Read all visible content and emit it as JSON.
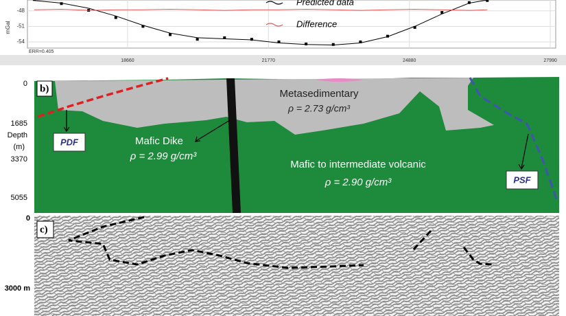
{
  "chart_data": {
    "type": "line",
    "ylabel": "mGal",
    "annotation": "ERR=0.405",
    "grid": true,
    "xlim": [
      16450,
      28110
    ],
    "xticks": [
      18660,
      21770,
      24880,
      27990
    ],
    "ylim": [
      -55.2,
      -45.9
    ],
    "yticks": [
      -48,
      -51,
      -54
    ],
    "x": [
      16600,
      17200,
      17800,
      18400,
      19000,
      19600,
      20200,
      20800,
      21400,
      22000,
      22600,
      23200,
      23800,
      24400,
      25000,
      25600,
      26200,
      26600
    ],
    "series": [
      {
        "marker": "square",
        "color": "#000000",
        "values": [
          -45.8,
          -46.6,
          -47.9,
          -49.3,
          -51.0,
          -52.6,
          -53.5,
          -53.2,
          -53.5,
          -54.0,
          -54.4,
          -54.5,
          -54.0,
          -52.9,
          -51.2,
          -48.3,
          -46.4,
          -46.0
        ]
      },
      {
        "name": "Predicted data",
        "color": "#000000",
        "values": [
          -46.0,
          -46.5,
          -47.5,
          -49.0,
          -50.8,
          -52.3,
          -53.2,
          -53.4,
          -53.6,
          -54.2,
          -54.5,
          -54.6,
          -54.2,
          -53.0,
          -51.0,
          -48.6,
          -46.5,
          -45.9
        ]
      },
      {
        "name": "Difference",
        "color": "#e05a5a",
        "values": [
          -47.8,
          -47.7,
          -47.9,
          -47.8,
          -47.8,
          -47.7,
          -47.8,
          -47.9,
          -47.8,
          -47.8,
          -47.7,
          -47.8,
          -47.9,
          -47.8,
          -47.7,
          -47.8,
          -47.9,
          -47.8
        ]
      }
    ]
  },
  "panel_b": {
    "label": "b)",
    "units": [
      {
        "name": "Metasedimentary",
        "density": "ρ = 2.73 g/cm³"
      },
      {
        "name": "Mafic Dike",
        "density": "ρ = 2.99 g/cm³"
      },
      {
        "name": "Mafic to intermediate volcanic",
        "density": "ρ = 2.90 g/cm³"
      }
    ],
    "faults": [
      "PDF",
      "PSF"
    ],
    "depth_title": "Depth",
    "depth_units": "(m)",
    "depth_ticks": [
      "0",
      "1685",
      "3370",
      "5055"
    ]
  },
  "panel_c": {
    "label": "c)",
    "depth_ticks": [
      "0",
      "3000 m"
    ]
  }
}
